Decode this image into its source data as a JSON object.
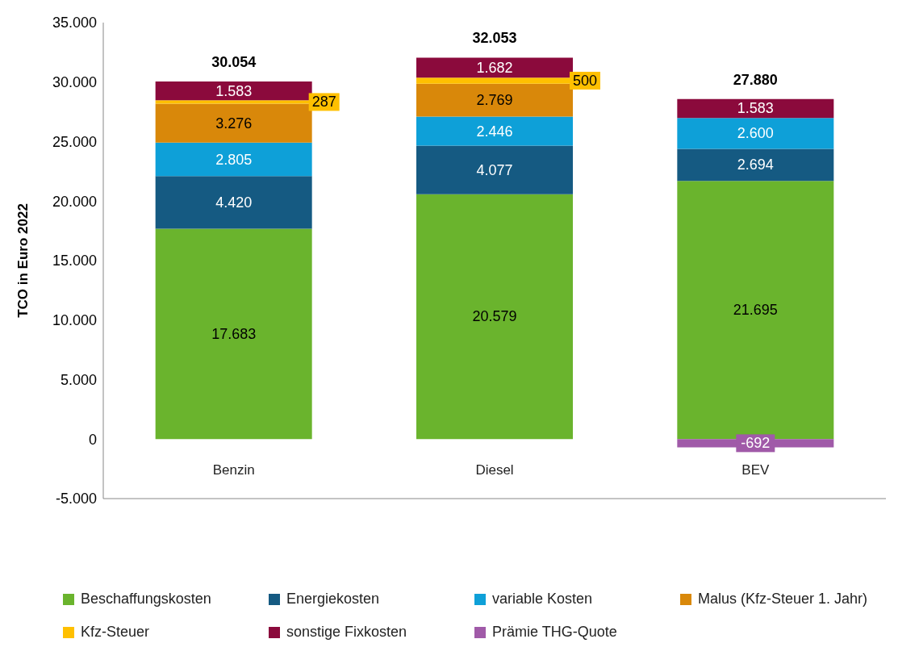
{
  "chart_data": {
    "type": "bar",
    "stacked": true,
    "ylabel": "TCO in Euro 2022",
    "categories": [
      "Benzin",
      "Diesel",
      "BEV"
    ],
    "series": [
      {
        "name": "Beschaffungskosten",
        "color": "#6ab42d",
        "values": [
          17683,
          20579,
          21695
        ],
        "value_labels": [
          "17.683",
          "20.579",
          "21.695"
        ]
      },
      {
        "name": "Energiekosten",
        "color": "#155a82",
        "values": [
          4420,
          4077,
          2694
        ],
        "value_labels": [
          "4.420",
          "4.077",
          "2.694"
        ]
      },
      {
        "name": "variable Kosten",
        "color": "#0ea0d8",
        "values": [
          2805,
          2446,
          2600
        ],
        "value_labels": [
          "2.805",
          "2.446",
          "2.600"
        ]
      },
      {
        "name": "Malus (Kfz-Steuer 1. Jahr)",
        "color": "#d9880a",
        "values": [
          3276,
          2769,
          null
        ],
        "value_labels": [
          "3.276",
          "2.769",
          null
        ]
      },
      {
        "name": "Kfz-Steuer",
        "color": "#ffc000",
        "values": [
          287,
          500,
          null
        ],
        "value_labels": [
          "287",
          "500",
          null
        ]
      },
      {
        "name": "sonstige Fixkosten",
        "color": "#8b0a3c",
        "values": [
          1583,
          1682,
          1583
        ],
        "value_labels": [
          "1.583",
          "1.682",
          "1.583"
        ]
      },
      {
        "name": "Prämie THG-Quote",
        "color": "#a05aa8",
        "values": [
          null,
          null,
          -692
        ],
        "value_labels": [
          null,
          null,
          "-692"
        ]
      }
    ],
    "totals": [
      "30.054",
      "32.053",
      "27.880"
    ],
    "ylim": [
      -5000,
      35000
    ],
    "yticks": [
      {
        "value": -5000,
        "label": "-5.000"
      },
      {
        "value": 0,
        "label": "0"
      },
      {
        "value": 5000,
        "label": "5.000"
      },
      {
        "value": 10000,
        "label": "10.000"
      },
      {
        "value": 15000,
        "label": "15.000"
      },
      {
        "value": 20000,
        "label": "20.000"
      },
      {
        "value": 25000,
        "label": "25.000"
      },
      {
        "value": 30000,
        "label": "30.000"
      },
      {
        "value": 35000,
        "label": "35.000"
      }
    ],
    "legend": "bottom"
  }
}
